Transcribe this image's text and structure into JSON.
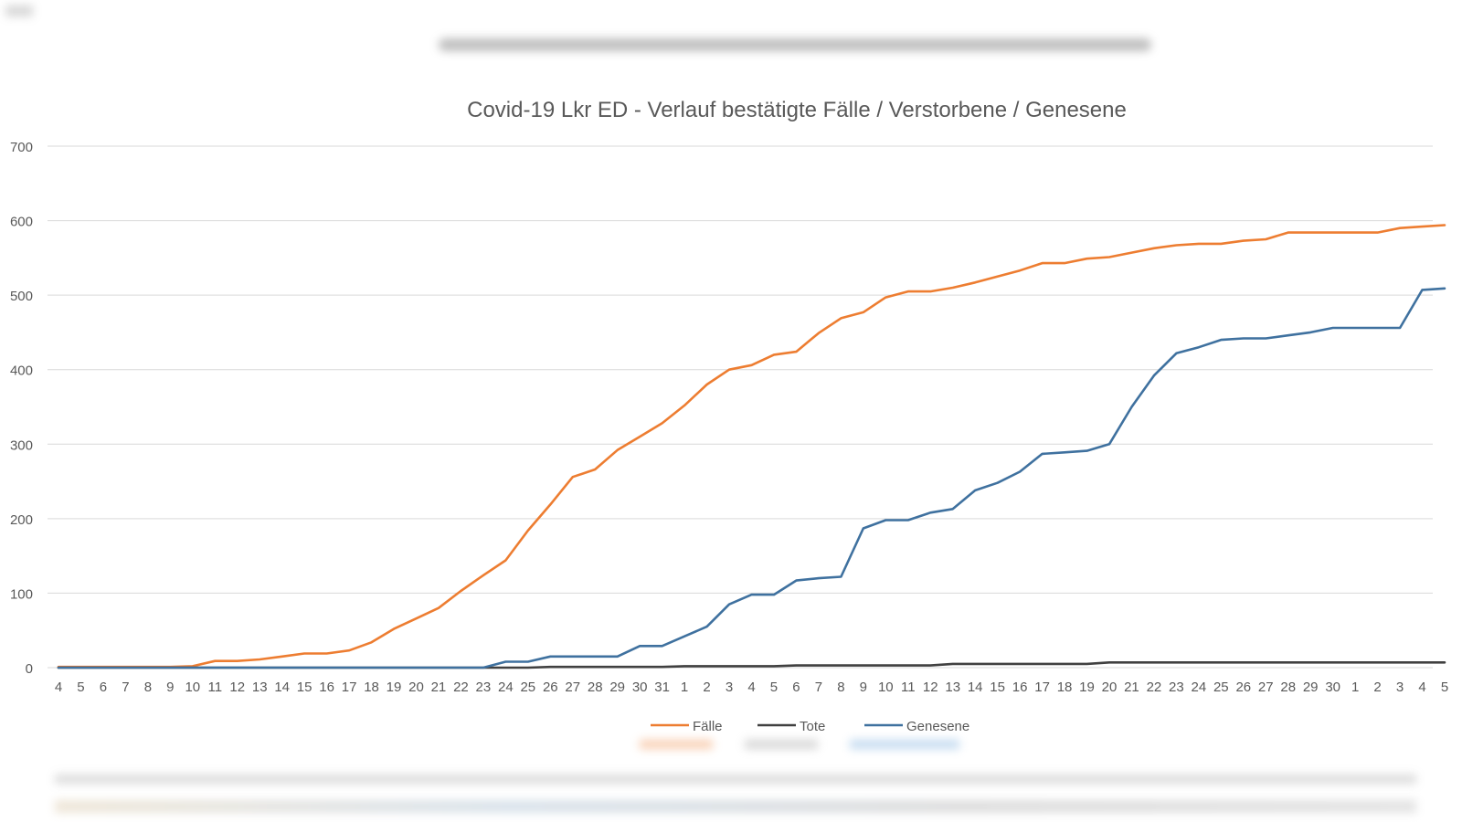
{
  "colors": {
    "faelle": "#ED7D31",
    "tote": "#404040",
    "genesene": "#3F719F",
    "grid": "#D9D9D9",
    "text": "#595959"
  },
  "chart_data": {
    "type": "line",
    "title": "Covid-19 Lkr ED - Verlauf bestätigte Fälle / Verstorbene / Genesene",
    "xlabel": "",
    "ylabel": "",
    "ylim": [
      0,
      700
    ],
    "yticks": [
      0,
      100,
      200,
      300,
      400,
      500,
      600,
      700
    ],
    "grid": true,
    "legend_position": "bottom",
    "categories": [
      "4",
      "5",
      "6",
      "7",
      "8",
      "9",
      "10",
      "11",
      "12",
      "13",
      "14",
      "15",
      "16",
      "17",
      "18",
      "19",
      "20",
      "21",
      "22",
      "23",
      "24",
      "25",
      "26",
      "27",
      "28",
      "29",
      "30",
      "31",
      "1",
      "2",
      "3",
      "4",
      "5",
      "6",
      "7",
      "8",
      "9",
      "10",
      "11",
      "12",
      "13",
      "14",
      "15",
      "16",
      "17",
      "18",
      "19",
      "20",
      "21",
      "22",
      "23",
      "24",
      "25",
      "26",
      "27",
      "28",
      "29",
      "30",
      "1",
      "2",
      "3",
      "4",
      "5"
    ],
    "series": [
      {
        "name": "Fälle",
        "color": "#ED7D31",
        "values": [
          1,
          1,
          1,
          1,
          1,
          1,
          2,
          9,
          9,
          11,
          15,
          19,
          19,
          23,
          34,
          52,
          66,
          80,
          103,
          124,
          144,
          184,
          219,
          256,
          266,
          292,
          310,
          328,
          352,
          380,
          400,
          406,
          420,
          424,
          449,
          469,
          477,
          497,
          505,
          505,
          510,
          517,
          525,
          533,
          543,
          543,
          549,
          551,
          557,
          563,
          567,
          569,
          569,
          573,
          575,
          584,
          584,
          584,
          584,
          584,
          590,
          592,
          594
        ]
      },
      {
        "name": "Tote",
        "color": "#404040",
        "values": [
          0,
          0,
          0,
          0,
          0,
          0,
          0,
          0,
          0,
          0,
          0,
          0,
          0,
          0,
          0,
          0,
          0,
          0,
          0,
          0,
          0,
          0,
          1,
          1,
          1,
          1,
          1,
          1,
          2,
          2,
          2,
          2,
          2,
          3,
          3,
          3,
          3,
          3,
          3,
          3,
          5,
          5,
          5,
          5,
          5,
          5,
          5,
          7,
          7,
          7,
          7,
          7,
          7,
          7,
          7,
          7,
          7,
          7,
          7,
          7,
          7,
          7,
          7
        ]
      },
      {
        "name": "Genesene",
        "color": "#3F719F",
        "values": [
          0,
          0,
          0,
          0,
          0,
          0,
          0,
          0,
          0,
          0,
          0,
          0,
          0,
          0,
          0,
          0,
          0,
          0,
          0,
          0,
          8,
          8,
          15,
          15,
          15,
          15,
          29,
          29,
          42,
          55,
          85,
          98,
          98,
          117,
          120,
          122,
          187,
          198,
          198,
          208,
          213,
          238,
          248,
          263,
          287,
          289,
          291,
          300,
          350,
          392,
          422,
          430,
          440,
          442,
          442,
          446,
          450,
          456,
          456,
          456,
          456,
          507,
          509
        ]
      }
    ]
  }
}
